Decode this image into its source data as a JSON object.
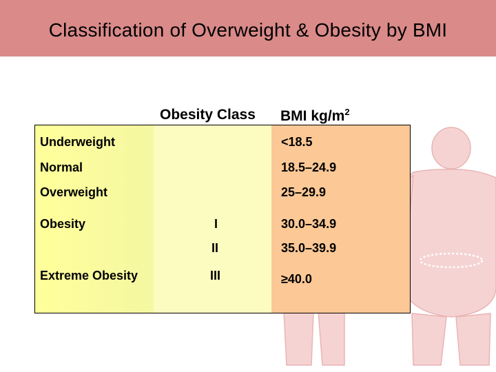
{
  "slide": {
    "title": "Classification of Overweight & Obesity by BMI"
  },
  "table": {
    "headers": {
      "obesity_class": "Obesity Class",
      "bmi_text": "BMI kg/m",
      "bmi_sup": "2"
    },
    "rows": [
      {
        "category": "Underweight",
        "obesity_class": "",
        "bmi": "<18.5"
      },
      {
        "category": "Normal",
        "obesity_class": "",
        "bmi": "18.5–24.9"
      },
      {
        "category": "Overweight",
        "obesity_class": "",
        "bmi": "25–29.9"
      },
      {
        "category": "Obesity",
        "obesity_class": "I",
        "bmi": "30.0–34.9"
      },
      {
        "category": "",
        "obesity_class": "II",
        "bmi": "35.0–39.9"
      },
      {
        "category": "Extreme Obesity",
        "obesity_class": "III",
        "bmi": "≥40.0"
      }
    ]
  },
  "colors": {
    "title_bar": "#d98a89",
    "category_column": "#ffff9a",
    "class_column": "#fdfcc0",
    "bmi_column": "#fcc896",
    "figure": "#f5d0d0"
  }
}
